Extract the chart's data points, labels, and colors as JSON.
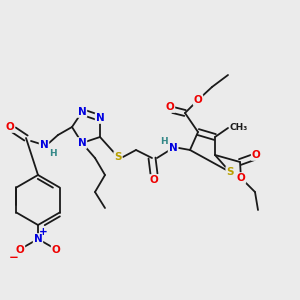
{
  "bg_color": "#ebebeb",
  "atom_colors": {
    "C": "#1a1a1a",
    "N": "#0000e0",
    "O": "#ee0000",
    "S": "#b8a000",
    "H": "#338888"
  },
  "bond_color": "#1a1a1a",
  "line_width": 1.3,
  "font_size_atom": 7.5,
  "font_size_small": 6.5
}
